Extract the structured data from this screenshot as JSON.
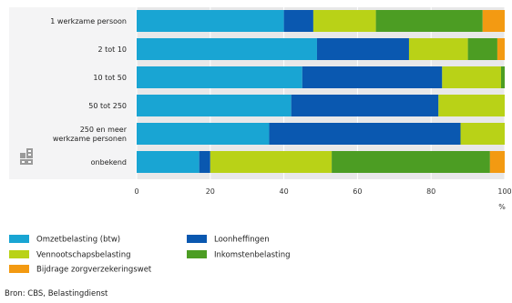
{
  "chart_data": {
    "type": "bar",
    "orientation": "horizontal",
    "stacked": true,
    "categories": [
      "1 werkzame persoon",
      "2 tot 10",
      "10 tot 50",
      "50 tot 250",
      [
        "250 en meer",
        "werkzame personen"
      ],
      "onbekend"
    ],
    "series": [
      {
        "name": "Omzetbelasting (btw)",
        "color": "#19a5d3",
        "values": [
          40,
          49,
          45,
          42,
          36,
          17
        ]
      },
      {
        "name": "Loonheffingen",
        "color": "#0a58b0",
        "values": [
          8,
          25,
          38,
          40,
          52,
          3
        ]
      },
      {
        "name": "Vennootschapsbelasting",
        "color": "#b9d217",
        "values": [
          17,
          16,
          16,
          18,
          12,
          33
        ]
      },
      {
        "name": "Inkomstenbelasting",
        "color": "#4c9d23",
        "values": [
          29,
          8,
          1,
          0,
          0,
          43
        ]
      },
      {
        "name": "Bijdrage zorgverzekeringswet",
        "color": "#f39a12",
        "values": [
          6,
          2,
          0,
          0,
          0,
          4
        ]
      }
    ],
    "xticks": [
      0,
      20,
      40,
      60,
      80,
      100
    ],
    "xlim": [
      0,
      100
    ],
    "x_unit": "%",
    "grid": true,
    "legend_position": "bottom",
    "source": "Bron: CBS, Belastingdienst"
  }
}
